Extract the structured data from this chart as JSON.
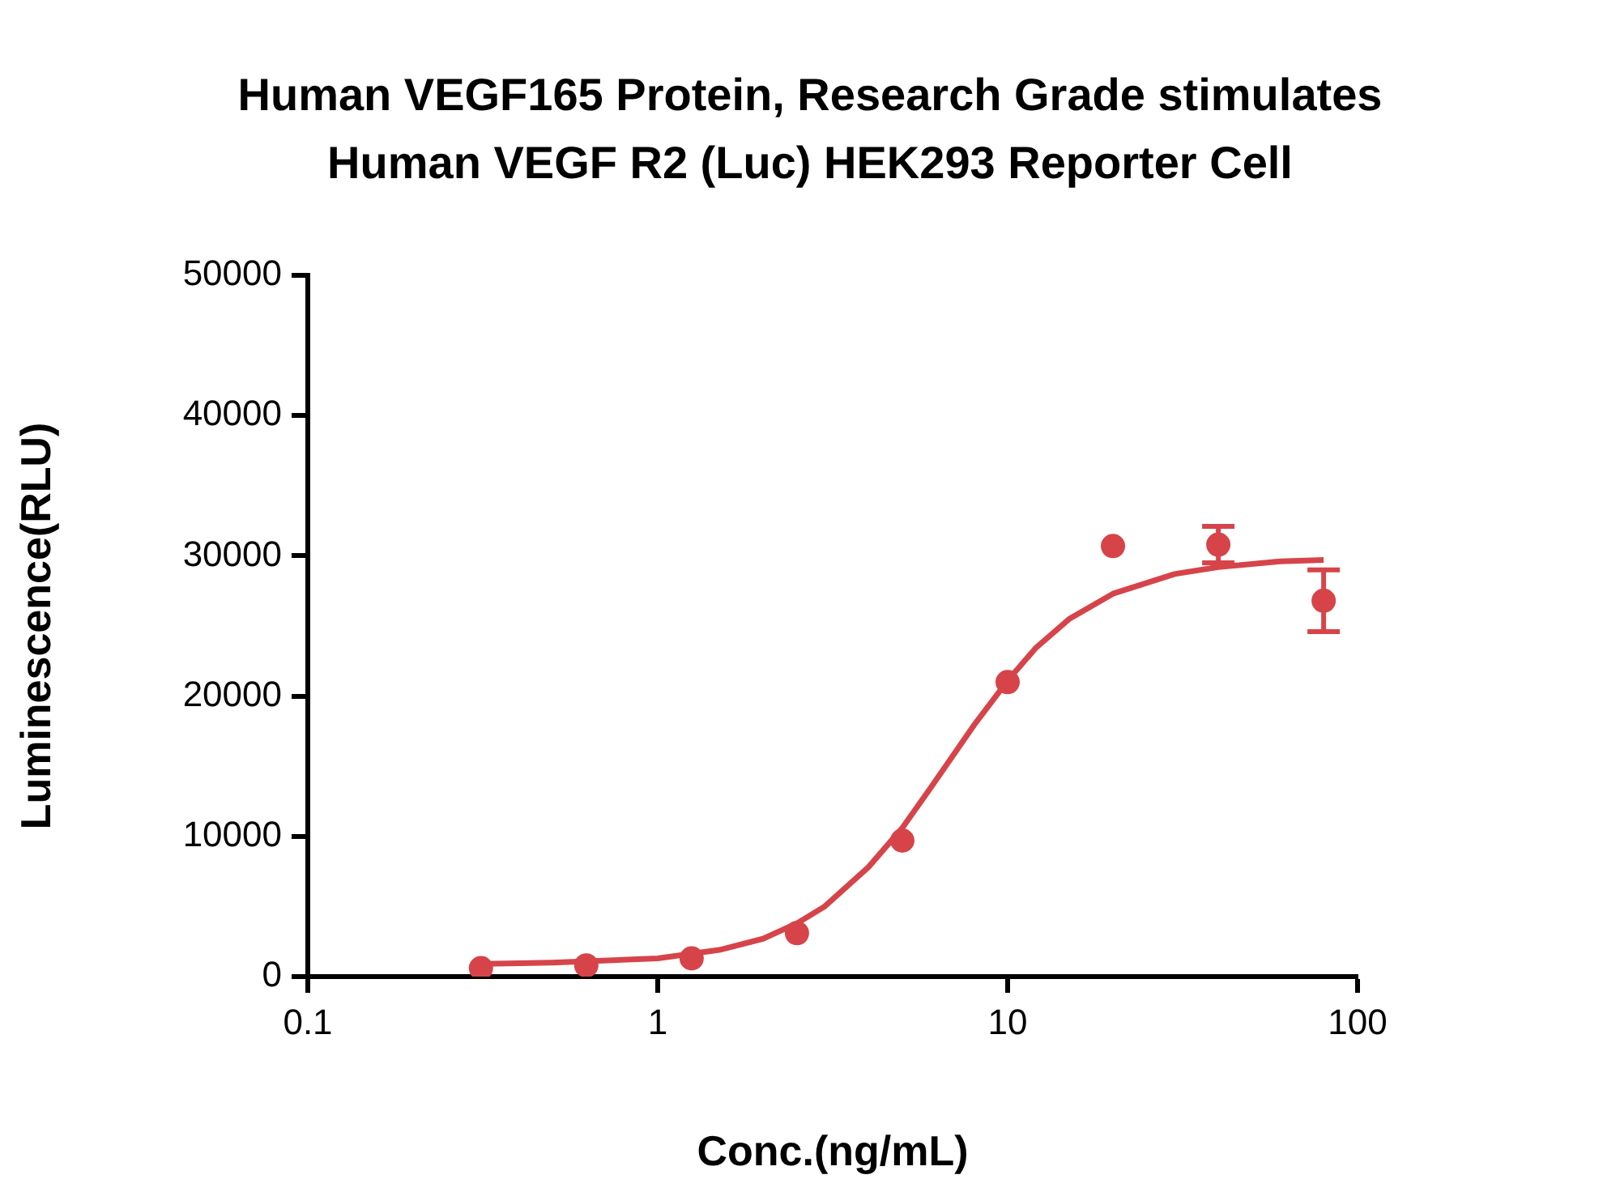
{
  "chart_data": {
    "type": "scatter",
    "title": "Human VEGF165 Protein, Research Grade stimulates Human VEGF R2 (Luc) HEK293 Reporter Cell",
    "xlabel": "Conc.(ng/mL)",
    "ylabel": "Luminescence(RLU)",
    "log": "x",
    "xlim": [
      0.1,
      100
    ],
    "xticks": [
      0.1,
      1,
      10,
      100
    ],
    "ylim": [
      0,
      50000
    ],
    "yticks": [
      0,
      10000,
      20000,
      30000,
      40000,
      50000
    ],
    "grid": false,
    "legend": false,
    "marker": "circle",
    "series": [
      {
        "type": "scatter",
        "color": "#d6444a",
        "x": [
          0.3125,
          0.625,
          1.25,
          2.5,
          5,
          10,
          20,
          40,
          80
        ],
        "values": [
          600,
          800,
          1300,
          3100,
          9700,
          21000,
          30700,
          30800,
          26800
        ],
        "errors": [
          null,
          null,
          null,
          null,
          null,
          null,
          null,
          1300,
          2200
        ]
      },
      {
        "type": "line",
        "color": "#d6444a",
        "marker": "none",
        "line_style": "solid",
        "x": [
          0.3,
          0.5,
          1,
          1.5,
          2,
          2.5,
          3,
          4,
          5,
          6,
          7,
          8,
          10,
          12,
          15,
          20,
          30,
          40,
          60,
          80
        ],
        "values": [
          900,
          1000,
          1300,
          1900,
          2700,
          3800,
          5000,
          7800,
          10600,
          13400,
          15800,
          17900,
          21100,
          23400,
          25500,
          27300,
          28700,
          29200,
          29600,
          29700
        ]
      }
    ]
  }
}
